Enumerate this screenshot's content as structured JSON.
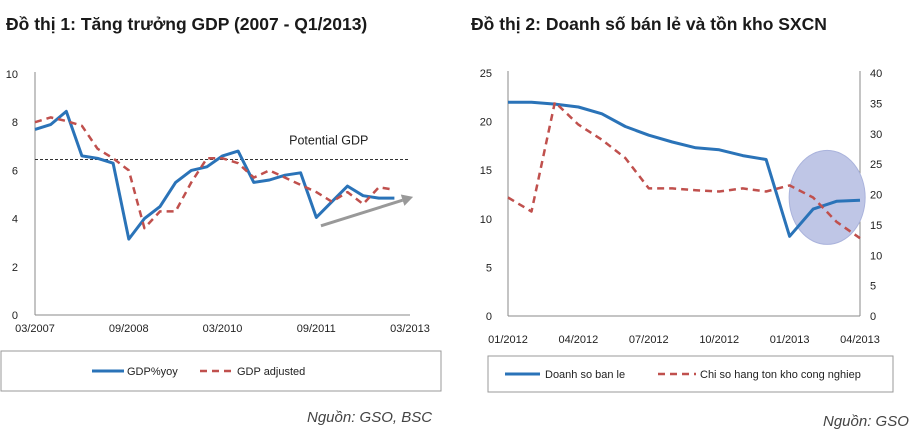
{
  "chart_data": [
    {
      "type": "line",
      "title": "Đồ thị 1: Tăng trưởng GDP (2007 - Q1/2013)",
      "source": "Nguồn: GSO, BSC",
      "ylim": [
        0,
        10
      ],
      "yticks": [
        "0",
        "2",
        "4",
        "6",
        "8",
        "10"
      ],
      "xticks": [
        "03/2007",
        "09/2008",
        "03/2010",
        "09/2011",
        "03/2013"
      ],
      "xlim": [
        0,
        24
      ],
      "xtick_positions": [
        0,
        6,
        12,
        18,
        24
      ],
      "annotation": "Potential GDP",
      "potential_gdp": 6.45,
      "series": [
        {
          "name": "GDP%yoy",
          "style": "solid",
          "color": "#2a73b8",
          "x": [
            0,
            1,
            2,
            3,
            4,
            5,
            6,
            7,
            8,
            9,
            10,
            11,
            12,
            13,
            14,
            15,
            16,
            17,
            18,
            19,
            20,
            21,
            22,
            23
          ],
          "values": [
            7.7,
            7.9,
            8.45,
            6.6,
            6.5,
            6.3,
            3.15,
            4.0,
            4.5,
            5.5,
            6.0,
            6.15,
            6.6,
            6.8,
            5.5,
            5.6,
            5.8,
            5.9,
            4.05,
            4.7,
            5.35,
            4.95,
            4.85,
            4.85
          ]
        },
        {
          "name": "GDP adjusted",
          "style": "dashed",
          "color": "#c0504d",
          "x": [
            0,
            1,
            2,
            3,
            4,
            5,
            6,
            7,
            8,
            9,
            10,
            11,
            12,
            13,
            14,
            15,
            16,
            17,
            18,
            19,
            20,
            21,
            22,
            23
          ],
          "values": [
            8.0,
            8.2,
            8.05,
            7.85,
            6.9,
            6.5,
            6.0,
            3.6,
            4.3,
            4.3,
            5.5,
            6.5,
            6.5,
            6.3,
            5.7,
            6.0,
            5.7,
            5.4,
            5.1,
            4.7,
            5.1,
            4.6,
            5.3,
            5.2
          ]
        }
      ],
      "trend_arrow": {
        "from": [
          18.3,
          3.7
        ],
        "to": [
          24.2,
          4.9
        ]
      }
    },
    {
      "type": "line",
      "title": "Đồ thị 2: Doanh số bán lẻ và tồn kho SXCN",
      "source": "Nguồn: GSO",
      "ylim": [
        0,
        25
      ],
      "y2lim": [
        0,
        40
      ],
      "yticks": [
        "0",
        "5",
        "10",
        "15",
        "20",
        "25"
      ],
      "y2ticks": [
        "0",
        "5",
        "10",
        "15",
        "20",
        "25",
        "30",
        "35",
        "40"
      ],
      "xticks": [
        "01/2012",
        "04/2012",
        "07/2012",
        "10/2012",
        "01/2013",
        "04/2013"
      ],
      "xlim": [
        0,
        15
      ],
      "xtick_positions": [
        0,
        3,
        6,
        9,
        12,
        15
      ],
      "series": [
        {
          "name": "Doanh so ban le",
          "axis": "left",
          "style": "solid",
          "color": "#2a73b8",
          "x": [
            0,
            1,
            2,
            3,
            4,
            5,
            6,
            7,
            8,
            9,
            10,
            11,
            12,
            13,
            14,
            15
          ],
          "values": [
            22.0,
            22.0,
            21.8,
            21.5,
            20.8,
            19.5,
            18.6,
            17.9,
            17.3,
            17.1,
            16.5,
            16.1,
            8.2,
            11.0,
            11.8,
            11.9
          ]
        },
        {
          "name": "Chi so hang ton kho cong nghiep",
          "axis": "right",
          "style": "dashed",
          "color": "#c0504d",
          "x": [
            0,
            1,
            2,
            3,
            4,
            5,
            6,
            7,
            8,
            9,
            10,
            11,
            12,
            13,
            14,
            15
          ],
          "values": [
            19.5,
            17.2,
            35.2,
            31.5,
            29.0,
            26.0,
            21.0,
            21.0,
            20.7,
            20.5,
            21.0,
            20.5,
            21.5,
            19.5,
            15.5,
            12.8
          ]
        }
      ],
      "highlight": {
        "center_x": 13.6,
        "center_y": 12.2
      }
    }
  ]
}
